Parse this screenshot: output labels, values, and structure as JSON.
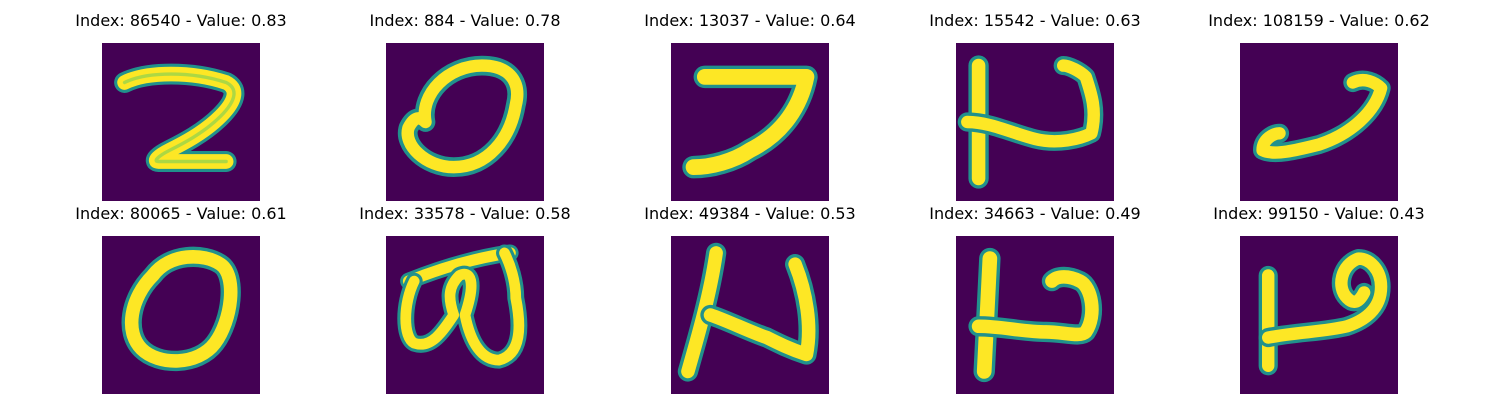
{
  "colors": {
    "background_purple": "#440154",
    "stroke_yellow": "#fde725",
    "edge_teal": "#21918c",
    "edge_green": "#5ec962"
  },
  "panels": [
    {
      "title": "Index: 86540 - Value: 0.83",
      "index": 86540,
      "value": 0.83,
      "glyph": "2-like"
    },
    {
      "title": "Index: 884 - Value: 0.78",
      "index": 884,
      "value": 0.78,
      "glyph": "0-like"
    },
    {
      "title": "Index: 13037 - Value: 0.64",
      "index": 13037,
      "value": 0.64,
      "glyph": "7-like"
    },
    {
      "title": "Index: 15542 - Value: 0.63",
      "index": 15542,
      "value": 0.63,
      "glyph": "N-like"
    },
    {
      "title": "Index: 108159 - Value: 0.62",
      "index": 108159,
      "value": 0.62,
      "glyph": "curl-like"
    },
    {
      "title": "Index: 80065 - Value: 0.61",
      "index": 80065,
      "value": 0.61,
      "glyph": "0-like"
    },
    {
      "title": "Index: 33578 - Value: 0.58",
      "index": 33578,
      "value": 0.58,
      "glyph": "loops-like"
    },
    {
      "title": "Index: 49384 - Value: 0.53",
      "index": 49384,
      "value": 0.53,
      "glyph": "N-like"
    },
    {
      "title": "Index: 34663 - Value: 0.49",
      "index": 34663,
      "value": 0.49,
      "glyph": "hook-like"
    },
    {
      "title": "Index: 99150 - Value: 0.43",
      "index": 99150,
      "value": 0.43,
      "glyph": "loop-hook-like"
    }
  ]
}
